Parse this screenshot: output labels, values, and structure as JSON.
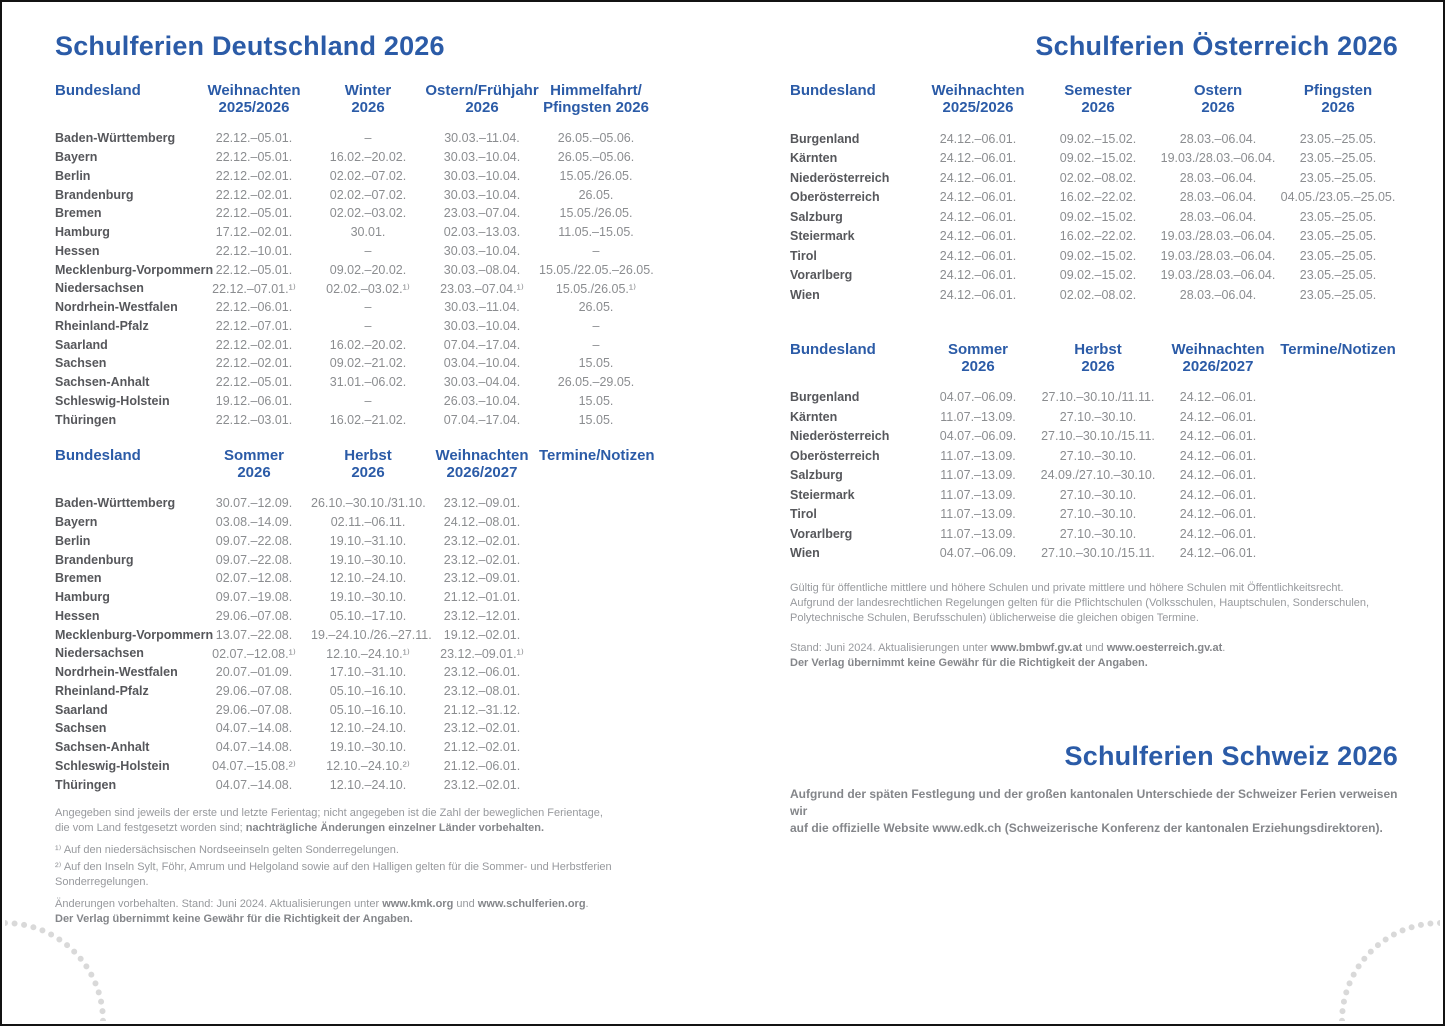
{
  "germany": {
    "title": "Schulferien Deutschland 2026",
    "table1": {
      "headers": [
        "Bundesland",
        "Weihnachten\n2025/2026",
        "Winter\n2026",
        "Ostern/Frühjahr\n2026",
        "Himmelfahrt/\nPfingsten 2026"
      ],
      "rows": [
        [
          "Baden-Württemberg",
          "22.12.–05.01.",
          "–",
          "30.03.–11.04.",
          "26.05.–05.06."
        ],
        [
          "Bayern",
          "22.12.–05.01.",
          "16.02.–20.02.",
          "30.03.–10.04.",
          "26.05.–05.06."
        ],
        [
          "Berlin",
          "22.12.–02.01.",
          "02.02.–07.02.",
          "30.03.–10.04.",
          "15.05./26.05."
        ],
        [
          "Brandenburg",
          "22.12.–02.01.",
          "02.02.–07.02.",
          "30.03.–10.04.",
          "26.05."
        ],
        [
          "Bremen",
          "22.12.–05.01.",
          "02.02.–03.02.",
          "23.03.–07.04.",
          "15.05./26.05."
        ],
        [
          "Hamburg",
          "17.12.–02.01.",
          "30.01.",
          "02.03.–13.03.",
          "11.05.–15.05."
        ],
        [
          "Hessen",
          "22.12.–10.01.",
          "–",
          "30.03.–10.04.",
          "–"
        ],
        [
          "Mecklenburg-Vorpommern",
          "22.12.–05.01.",
          "09.02.–20.02.",
          "30.03.–08.04.",
          "15.05./22.05.–26.05."
        ],
        [
          "Niedersachsen",
          "22.12.–07.01.¹⁾",
          "02.02.–03.02.¹⁾",
          "23.03.–07.04.¹⁾",
          "15.05./26.05.¹⁾"
        ],
        [
          "Nordrhein-Westfalen",
          "22.12.–06.01.",
          "–",
          "30.03.–11.04.",
          "26.05."
        ],
        [
          "Rheinland-Pfalz",
          "22.12.–07.01.",
          "–",
          "30.03.–10.04.",
          "–"
        ],
        [
          "Saarland",
          "22.12.–02.01.",
          "16.02.–20.02.",
          "07.04.–17.04.",
          "–"
        ],
        [
          "Sachsen",
          "22.12.–02.01.",
          "09.02.–21.02.",
          "03.04.–10.04.",
          "15.05."
        ],
        [
          "Sachsen-Anhalt",
          "22.12.–05.01.",
          "31.01.–06.02.",
          "30.03.–04.04.",
          "26.05.–29.05."
        ],
        [
          "Schleswig-Holstein",
          "19.12.–06.01.",
          "–",
          "26.03.–10.04.",
          "15.05."
        ],
        [
          "Thüringen",
          "22.12.–03.01.",
          "16.02.–21.02.",
          "07.04.–17.04.",
          "15.05."
        ]
      ]
    },
    "table2": {
      "headers": [
        "Bundesland",
        "Sommer\n2026",
        "Herbst\n2026",
        "Weihnachten\n2026/2027",
        "Termine/Notizen"
      ],
      "rows": [
        [
          "Baden-Württemberg",
          "30.07.–12.09.",
          "26.10.–30.10./31.10.",
          "23.12.–09.01.",
          ""
        ],
        [
          "Bayern",
          "03.08.–14.09.",
          "02.11.–06.11.",
          "24.12.–08.01.",
          ""
        ],
        [
          "Berlin",
          "09.07.–22.08.",
          "19.10.–31.10.",
          "23.12.–02.01.",
          ""
        ],
        [
          "Brandenburg",
          "09.07.–22.08.",
          "19.10.–30.10.",
          "23.12.–02.01.",
          ""
        ],
        [
          "Bremen",
          "02.07.–12.08.",
          "12.10.–24.10.",
          "23.12.–09.01.",
          ""
        ],
        [
          "Hamburg",
          "09.07.–19.08.",
          "19.10.–30.10.",
          "21.12.–01.01.",
          ""
        ],
        [
          "Hessen",
          "29.06.–07.08.",
          "05.10.–17.10.",
          "23.12.–12.01.",
          ""
        ],
        [
          "Mecklenburg-Vorpommern",
          "13.07.–22.08.",
          "19.–24.10./26.–27.11.",
          "19.12.–02.01.",
          ""
        ],
        [
          "Niedersachsen",
          "02.07.–12.08.¹⁾",
          "12.10.–24.10.¹⁾",
          "23.12.–09.01.¹⁾",
          ""
        ],
        [
          "Nordrhein-Westfalen",
          "20.07.–01.09.",
          "17.10.–31.10.",
          "23.12.–06.01.",
          ""
        ],
        [
          "Rheinland-Pfalz",
          "29.06.–07.08.",
          "05.10.–16.10.",
          "23.12.–08.01.",
          ""
        ],
        [
          "Saarland",
          "29.06.–07.08.",
          "05.10.–16.10.",
          "21.12.–31.12.",
          ""
        ],
        [
          "Sachsen",
          "04.07.–14.08.",
          "12.10.–24.10.",
          "23.12.–02.01.",
          ""
        ],
        [
          "Sachsen-Anhalt",
          "04.07.–14.08.",
          "19.10.–30.10.",
          "21.12.–02.01.",
          ""
        ],
        [
          "Schleswig-Holstein",
          "04.07.–15.08.²⁾",
          "12.10.–24.10.²⁾",
          "21.12.–06.01.",
          ""
        ],
        [
          "Thüringen",
          "04.07.–14.08.",
          "12.10.–24.10.",
          "23.12.–02.01.",
          ""
        ]
      ]
    },
    "notes": {
      "p1": [
        {
          "t": "Angegeben sind jeweils der erste und letzte Ferientag; nicht angegeben ist die Zahl der beweglichen Ferientage,\ndie vom Land festgesetzt worden sind; ",
          "b": false
        },
        {
          "t": "nachträgliche Änderungen einzelner Länder vorbehalten.",
          "b": true
        }
      ],
      "fn1": [
        {
          "t": "¹⁾ Auf den niedersächsischen Nordseeinseln gelten Sonderregelungen.",
          "b": false
        }
      ],
      "fn2": [
        {
          "t": "²⁾ Auf den Inseln Sylt, Föhr, Amrum und Helgoland sowie auf den Halligen gelten für die Sommer- und Herbstferien Sonderregelungen.",
          "b": false
        }
      ],
      "p2": [
        {
          "t": "Änderungen vorbehalten. Stand: Juni 2024. Aktualisierungen unter ",
          "b": false
        },
        {
          "t": "www.kmk.org",
          "b": true
        },
        {
          "t": " und ",
          "b": false
        },
        {
          "t": "www.schulferien.org",
          "b": true
        },
        {
          "t": ".",
          "b": false
        },
        {
          "t": "\nDer Verlag übernimmt keine Gewähr für die Richtigkeit der Angaben.",
          "b": true
        }
      ]
    }
  },
  "austria": {
    "title": "Schulferien Österreich 2026",
    "table1": {
      "headers": [
        "Bundesland",
        "Weihnachten\n2025/2026",
        "Semester\n2026",
        "Ostern\n2026",
        "Pfingsten\n2026"
      ],
      "rows": [
        [
          "Burgenland",
          "24.12.–06.01.",
          "09.02.–15.02.",
          "28.03.–06.04.",
          "23.05.–25.05."
        ],
        [
          "Kärnten",
          "24.12.–06.01.",
          "09.02.–15.02.",
          "19.03./28.03.–06.04.",
          "23.05.–25.05."
        ],
        [
          "Niederösterreich",
          "24.12.–06.01.",
          "02.02.–08.02.",
          "28.03.–06.04.",
          "23.05.–25.05."
        ],
        [
          "Oberösterreich",
          "24.12.–06.01.",
          "16.02.–22.02.",
          "28.03.–06.04.",
          "04.05./23.05.–25.05."
        ],
        [
          "Salzburg",
          "24.12.–06.01.",
          "09.02.–15.02.",
          "28.03.–06.04.",
          "23.05.–25.05."
        ],
        [
          "Steiermark",
          "24.12.–06.01.",
          "16.02.–22.02.",
          "19.03./28.03.–06.04.",
          "23.05.–25.05."
        ],
        [
          "Tirol",
          "24.12.–06.01.",
          "09.02.–15.02.",
          "19.03./28.03.–06.04.",
          "23.05.–25.05."
        ],
        [
          "Vorarlberg",
          "24.12.–06.01.",
          "09.02.–15.02.",
          "19.03./28.03.–06.04.",
          "23.05.–25.05."
        ],
        [
          "Wien",
          "24.12.–06.01.",
          "02.02.–08.02.",
          "28.03.–06.04.",
          "23.05.–25.05."
        ]
      ]
    },
    "table2": {
      "headers": [
        "Bundesland",
        "Sommer\n2026",
        "Herbst\n2026",
        "Weihnachten\n2026/2027",
        "Termine/Notizen"
      ],
      "rows": [
        [
          "Burgenland",
          "04.07.–06.09.",
          "27.10.–30.10./11.11.",
          "24.12.–06.01.",
          ""
        ],
        [
          "Kärnten",
          "11.07.–13.09.",
          "27.10.–30.10.",
          "24.12.–06.01.",
          ""
        ],
        [
          "Niederösterreich",
          "04.07.–06.09.",
          "27.10.–30.10./15.11.",
          "24.12.–06.01.",
          ""
        ],
        [
          "Oberösterreich",
          "11.07.–13.09.",
          "27.10.–30.10.",
          "24.12.–06.01.",
          ""
        ],
        [
          "Salzburg",
          "11.07.–13.09.",
          "24.09./27.10.–30.10.",
          "24.12.–06.01.",
          ""
        ],
        [
          "Steiermark",
          "11.07.–13.09.",
          "27.10.–30.10.",
          "24.12.–06.01.",
          ""
        ],
        [
          "Tirol",
          "11.07.–13.09.",
          "27.10.–30.10.",
          "24.12.–06.01.",
          ""
        ],
        [
          "Vorarlberg",
          "11.07.–13.09.",
          "27.10.–30.10.",
          "24.12.–06.01.",
          ""
        ],
        [
          "Wien",
          "04.07.–06.09.",
          "27.10.–30.10./15.11.",
          "24.12.–06.01.",
          ""
        ]
      ]
    },
    "notes": {
      "p1": [
        {
          "t": "Gültig für öffentliche mittlere und höhere Schulen und private mittlere und höhere Schulen mit Öffentlichkeitsrecht.\nAufgrund der landesrechtlichen Regelungen gelten für die Pflichtschulen (Volksschulen, Hauptschulen, Sonderschulen,\nPolytechnische Schulen, Berufsschulen) üblicherweise die gleichen obigen Termine.",
          "b": false
        }
      ],
      "p2": [
        {
          "t": "Stand: Juni 2024. Aktualisierungen unter ",
          "b": false
        },
        {
          "t": "www.bmbwf.gv.at",
          "b": true
        },
        {
          "t": " und ",
          "b": false
        },
        {
          "t": "www.oesterreich.gv.at",
          "b": true
        },
        {
          "t": ".",
          "b": false
        },
        {
          "t": "\nDer Verlag übernimmt keine Gewähr für die Richtigkeit der Angaben.",
          "b": true
        }
      ]
    }
  },
  "switzerland": {
    "title": "Schulferien Schweiz 2026",
    "note": [
      {
        "t": "Aufgrund der späten Festlegung und der großen kantonalen Unterschiede der Schweizer Ferien verweisen wir\nauf die offizielle Website www.edk.ch (Schweizerische Konferenz der kantonalen Erziehungsdirektoren).",
        "b": true
      }
    ]
  },
  "colors": {
    "accent_blue": "#2b5ba7",
    "label_gray": "#56575b",
    "value_gray": "#8b8d90",
    "dot_gray": "#d9d9d9"
  }
}
